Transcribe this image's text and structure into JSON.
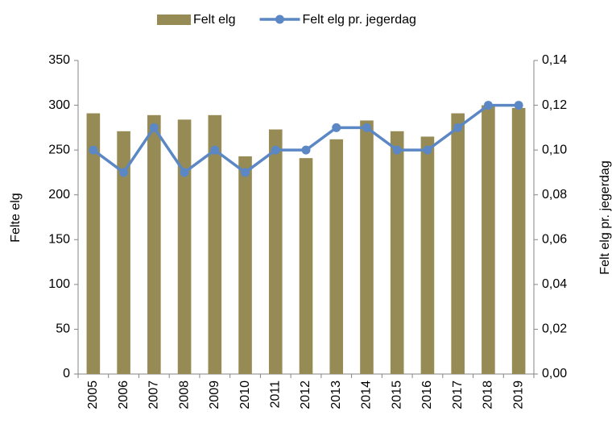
{
  "chart_data": {
    "type": "combo",
    "legend": "top",
    "y_label": "Felte elg",
    "y2_label": "Felt elg pr. jegerdag",
    "categories": [
      "2005",
      "2006",
      "2007",
      "2008",
      "2009",
      "2010",
      "2011",
      "2012",
      "2013",
      "2014",
      "2015",
      "2016",
      "2017",
      "2018",
      "2019"
    ],
    "series": [
      {
        "name": "Felt elg",
        "type": "bar",
        "color": "#968b55",
        "values": [
          291,
          271,
          289,
          284,
          289,
          243,
          273,
          241,
          262,
          283,
          271,
          265,
          291,
          300,
          297
        ]
      },
      {
        "name": "Felt elg pr. jegerdag",
        "type": "line",
        "axis": "y2",
        "color": "#5b87c4",
        "values": [
          0.1,
          0.09,
          0.11,
          0.09,
          0.1,
          0.09,
          0.1,
          0.1,
          0.11,
          0.11,
          0.1,
          0.1,
          0.11,
          0.12,
          0.12
        ]
      }
    ],
    "ylim": [
      0,
      350
    ],
    "yticks": [
      0,
      50,
      100,
      150,
      200,
      250,
      300,
      350
    ],
    "y2lim": [
      0,
      0.14
    ],
    "y2ticks": [
      {
        "value": 0,
        "label": "0,00"
      },
      {
        "value": 0.02,
        "label": "0,02"
      },
      {
        "value": 0.04,
        "label": "0,04"
      },
      {
        "value": 0.06,
        "label": "0,06"
      },
      {
        "value": 0.08,
        "label": "0,08"
      },
      {
        "value": 0.1,
        "label": "0,10"
      },
      {
        "value": 0.12,
        "label": "0,12"
      },
      {
        "value": 0.14,
        "label": "0,14"
      }
    ],
    "grid": false
  }
}
